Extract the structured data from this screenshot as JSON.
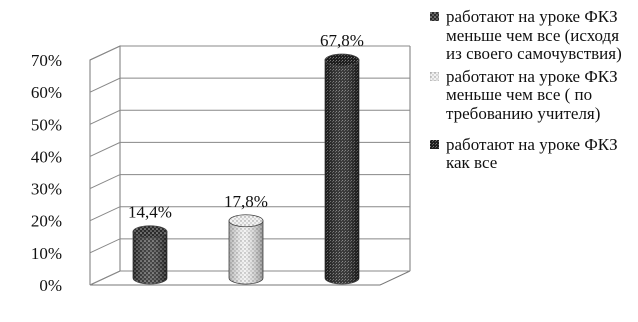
{
  "chart_data": {
    "type": "bar",
    "bar_style": "3d-cylinder",
    "y_ticks": [
      "0%",
      "10%",
      "20%",
      "30%",
      "40%",
      "50%",
      "60%",
      "70%"
    ],
    "ylim": [
      0,
      70
    ],
    "grid": true,
    "legend_position": "right",
    "series": [
      {
        "name": "работают на уроке ФКЗ меньше чем все (исходя из своего самочувствия)",
        "value": 14.4,
        "label": "14,4%",
        "pattern": "dark-dotted"
      },
      {
        "name": "работают на уроке ФКЗ меньше чем все ( по требованию учителя)",
        "value": 17.8,
        "label": "17,8%",
        "pattern": "light-dotted"
      },
      {
        "name": "работают на уроке ФКЗ как все",
        "value": 67.8,
        "label": "67,8%",
        "pattern": "dark-hatched"
      }
    ]
  },
  "legend": [
    {
      "text": "работают на уроке ФКЗ меньше чем все (исходя из своего самочувствия)"
    },
    {
      "text": "работают на уроке ФКЗ меньше чем все ( по требованию учителя)"
    },
    {
      "text": "работают на уроке ФКЗ как все"
    }
  ]
}
